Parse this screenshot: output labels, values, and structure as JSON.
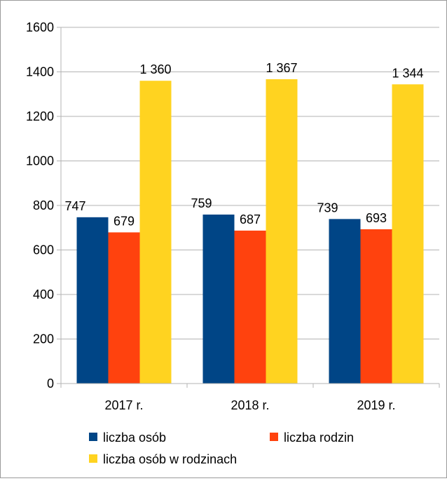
{
  "chart_data": {
    "type": "bar",
    "title": "",
    "xlabel": "",
    "ylabel": "",
    "categories": [
      "2017 r.",
      "2018 r.",
      "2019 r."
    ],
    "series": [
      {
        "name": "liczba osób",
        "values": [
          747,
          759,
          739
        ],
        "labels": [
          "747",
          "759",
          "739"
        ],
        "color": "#004586"
      },
      {
        "name": "liczba rodzin",
        "values": [
          679,
          687,
          693
        ],
        "labels": [
          "679",
          "687",
          "693"
        ],
        "color": "#ff420e"
      },
      {
        "name": "liczba osób w rodzinach",
        "values": [
          1360,
          1367,
          1344
        ],
        "labels": [
          "1 360",
          "1 367",
          "1 344"
        ],
        "color": "#ffd320"
      }
    ],
    "ylim": [
      0,
      1600
    ],
    "yticks": [
      0,
      200,
      400,
      600,
      800,
      1000,
      1200,
      1400,
      1600
    ],
    "grid": true,
    "legend": "bottom"
  }
}
